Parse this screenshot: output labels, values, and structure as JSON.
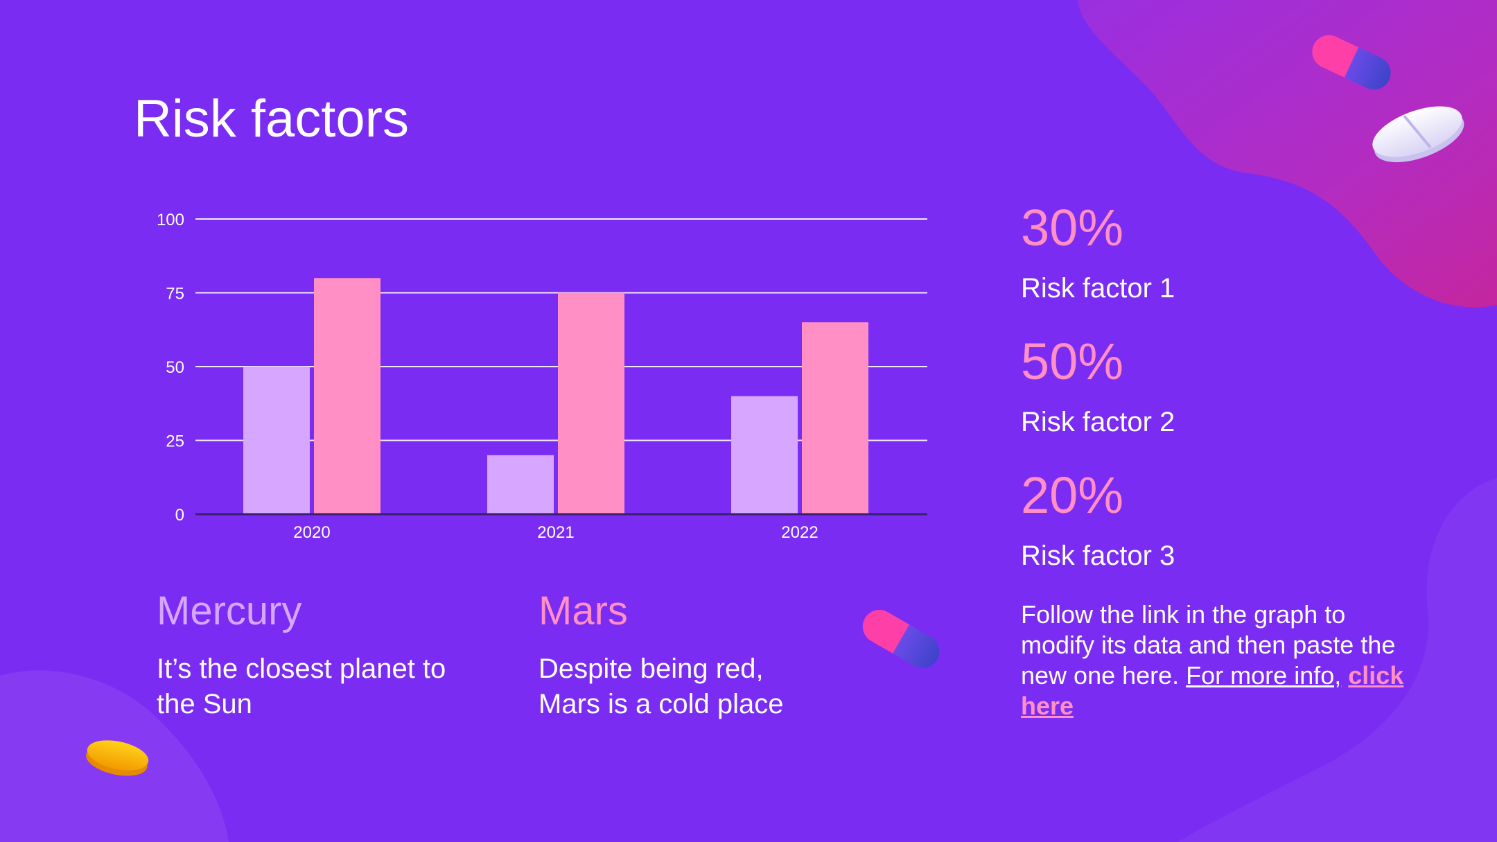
{
  "slide": {
    "title": "Risk factors"
  },
  "colors": {
    "background": "#7a2cf2",
    "series_light": "#d7a6ff",
    "series_pink": "#ff8fc4",
    "accent_pink": "#ff8fc4",
    "text": "#ffffff"
  },
  "chart_data": {
    "type": "bar",
    "categories": [
      "2020",
      "2021",
      "2022"
    ],
    "series": [
      {
        "name": "Mercury",
        "color": "#d7a6ff",
        "values": [
          50,
          20,
          40
        ]
      },
      {
        "name": "Mars",
        "color": "#ff8fc4",
        "values": [
          80,
          75,
          65
        ]
      }
    ],
    "ylim": [
      0,
      100
    ],
    "yticks": [
      0,
      25,
      50,
      75,
      100
    ],
    "grid": true,
    "title": "",
    "xlabel": "",
    "ylabel": ""
  },
  "stats": [
    {
      "value": "30%",
      "label": "Risk factor 1"
    },
    {
      "value": "50%",
      "label": "Risk factor 2"
    },
    {
      "value": "20%",
      "label": "Risk factor 3"
    }
  ],
  "planets": [
    {
      "name": "Mercury",
      "description_line1": "It’s the closest planet to",
      "description_line2": "the Sun"
    },
    {
      "name": "Mars",
      "description_line1": "Despite being red,",
      "description_line2": "Mars is a cold place"
    }
  ],
  "note": {
    "text": "Follow the link in the graph to modify its data and then paste the new one here. ",
    "link1": "For more info,",
    "link2": "click here"
  },
  "decorations": {
    "pill_icon": "capsule-icon",
    "tablet_icon": "tablet-icon",
    "yellow_tablet_icon": "yellow-tablet-icon"
  }
}
